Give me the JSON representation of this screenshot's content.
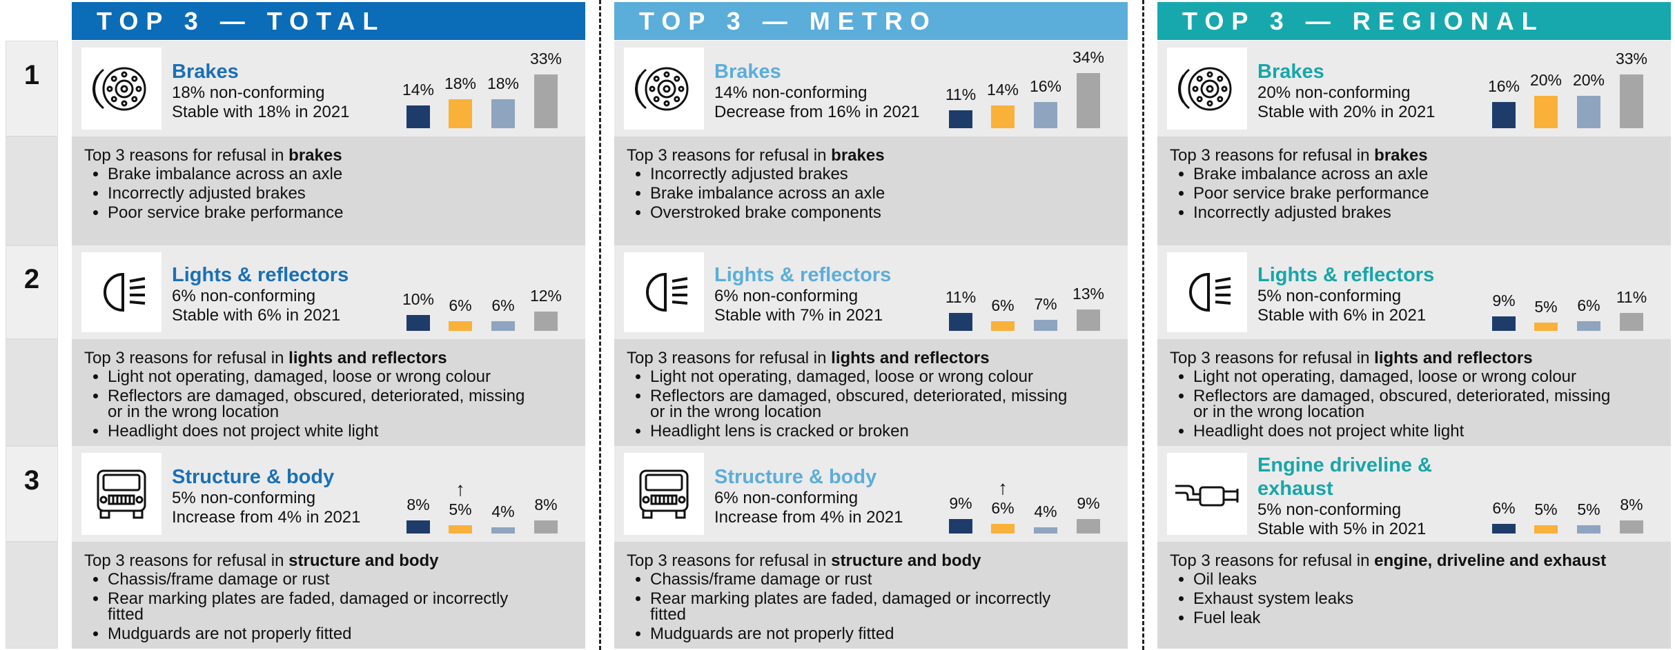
{
  "rank_labels": [
    "1",
    "2",
    "3"
  ],
  "bar_colors": [
    "#1d3c6a",
    "#f9b13a",
    "#8fa4bf",
    "#a6a6a6"
  ],
  "panels": [
    {
      "title": "TOP 3 — TOTAL",
      "color": "#0b6cb7",
      "name_color": "#1a70b6",
      "items": [
        {
          "name": "Brakes",
          "line1": "18% non-conforming",
          "line2": "Stable with 18% in 2021",
          "bars": [
            14,
            18,
            18,
            33
          ],
          "bar_labels": [
            "14%",
            "18%",
            "18%",
            "33%"
          ],
          "reasons_intro": "Top 3 reasons for refusal in ",
          "reasons_topic": "brakes",
          "reasons": [
            "Brake imbalance across an axle",
            "Incorrectly adjusted brakes",
            "Poor service brake performance"
          ]
        },
        {
          "name": "Lights & reflectors",
          "line1": "6% non-conforming",
          "line2": "Stable with 6% in 2021",
          "bars": [
            10,
            6,
            6,
            12
          ],
          "bar_labels": [
            "10%",
            "6%",
            "6%",
            "12%"
          ],
          "reasons_intro": "Top 3 reasons for refusal in ",
          "reasons_topic": "lights and reflectors",
          "reasons": [
            "Light not operating, damaged, loose or wrong colour",
            "Reflectors are damaged, obscured, deteriorated, missing or in the wrong location",
            "Headlight does not project white light"
          ]
        },
        {
          "name": "Structure & body",
          "line1": "5% non-conforming",
          "line2": "Increase from 4% in 2021",
          "bars": [
            8,
            5,
            4,
            8
          ],
          "bar_labels": [
            "8%",
            "5%",
            "4%",
            "8%"
          ],
          "trend": "↑",
          "reasons_intro": "Top 3 reasons for refusal in ",
          "reasons_topic": "structure and body",
          "reasons": [
            "Chassis/frame damage or rust",
            "Rear marking plates are faded, damaged or incorrectly fitted",
            "Mudguards are not properly fitted"
          ]
        }
      ]
    },
    {
      "title": "TOP 3 — METRO",
      "color": "#5badda",
      "name_color": "#5badda",
      "items": [
        {
          "name": "Brakes",
          "line1": "14% non-conforming",
          "line2": "Decrease from 16% in 2021",
          "bars": [
            11,
            14,
            16,
            34
          ],
          "bar_labels": [
            "11%",
            "14%",
            "16%",
            "34%"
          ],
          "reasons_intro": "Top 3 reasons for refusal in ",
          "reasons_topic": "brakes",
          "reasons": [
            "Incorrectly adjusted brakes",
            "Brake imbalance across an axle",
            "Overstroked brake components"
          ]
        },
        {
          "name": "Lights & reflectors",
          "line1": "6% non-conforming",
          "line2": "Stable with 7% in 2021",
          "bars": [
            11,
            6,
            7,
            13
          ],
          "bar_labels": [
            "11%",
            "6%",
            "7%",
            "13%"
          ],
          "reasons_intro": "Top 3 reasons for refusal in ",
          "reasons_topic": "lights and reflectors",
          "reasons": [
            "Light not operating, damaged, loose or wrong colour",
            "Reflectors are damaged, obscured, deteriorated, missing or in the wrong location",
            "Headlight lens is cracked or broken"
          ]
        },
        {
          "name": "Structure & body",
          "line1": "6% non-conforming",
          "line2": "Increase from 4% in 2021",
          "bars": [
            9,
            6,
            4,
            9
          ],
          "bar_labels": [
            "9%",
            "6%",
            "4%",
            "9%"
          ],
          "trend": "↑",
          "reasons_intro": "Top 3 reasons for refusal in ",
          "reasons_topic": "structure and body",
          "reasons": [
            "Chassis/frame damage or rust",
            "Rear marking plates are faded, damaged or incorrectly fitted",
            "Mudguards are not properly fitted"
          ]
        }
      ]
    },
    {
      "title": "TOP 3 — REGIONAL",
      "color": "#17a8ad",
      "name_color": "#17a6a9",
      "items": [
        {
          "name": "Brakes",
          "line1": "20% non-conforming",
          "line2": "Stable with 20% in 2021",
          "bars": [
            16,
            20,
            20,
            33
          ],
          "bar_labels": [
            "16%",
            "20%",
            "20%",
            "33%"
          ],
          "reasons_intro": "Top 3 reasons for refusal in ",
          "reasons_topic": "brakes",
          "reasons": [
            "Brake imbalance across an axle",
            "Poor service brake performance",
            "Incorrectly adjusted brakes"
          ]
        },
        {
          "name": "Lights & reflectors",
          "line1": "5% non-conforming",
          "line2": "Stable with 6% in 2021",
          "bars": [
            9,
            5,
            6,
            11
          ],
          "bar_labels": [
            "9%",
            "5%",
            "6%",
            "11%"
          ],
          "reasons_intro": "Top 3 reasons for refusal in ",
          "reasons_topic": "lights and reflectors",
          "reasons": [
            "Light not operating, damaged, loose or wrong colour",
            "Reflectors are damaged, obscured, deteriorated, missing or in the wrong location",
            "Headlight does not project white light"
          ]
        },
        {
          "name": "Engine driveline & exhaust",
          "line1": "5% non-conforming",
          "line2": "Stable with 5% in 2021",
          "bars": [
            6,
            5,
            5,
            8
          ],
          "bar_labels": [
            "6%",
            "5%",
            "5%",
            "8%"
          ],
          "reasons_intro": "Top 3 reasons for refusal in ",
          "reasons_topic": "engine, driveline and exhaust",
          "reasons": [
            "Oil leaks",
            "Exhaust system leaks",
            "Fuel leak"
          ]
        }
      ]
    }
  ]
}
